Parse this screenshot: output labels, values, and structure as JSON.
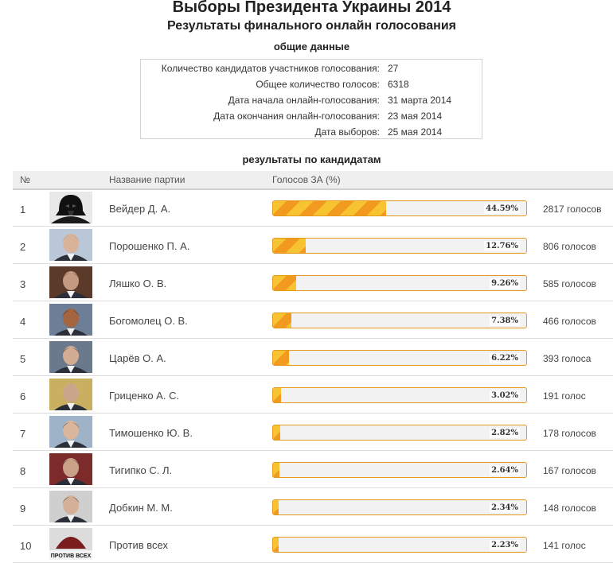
{
  "header": {
    "title": "Выборы Президента Украины 2014",
    "subtitle": "Результаты финального онлайн голосования"
  },
  "general": {
    "heading": "общие данные",
    "rows": [
      {
        "label": "Количество кандидатов участников голосования:",
        "value": "27"
      },
      {
        "label": "Общее количество голосов:",
        "value": "6318"
      },
      {
        "label": "Дата начала онлайн-голосования:",
        "value": "31 марта 2014"
      },
      {
        "label": "Дата окончания онлайн-голосования:",
        "value": "23 мая 2014"
      },
      {
        "label": "Дата выборов:",
        "value": "25 мая 2014"
      }
    ]
  },
  "results": {
    "heading": "результаты по кандидатам",
    "columns": {
      "num": "№",
      "party": "Название партии",
      "votes": "Голосов ЗА (%)"
    },
    "bar_colors": {
      "stripe_light": "#f7c331",
      "stripe_dark": "#f29a1f",
      "border": "#e39a1a",
      "track": "#f2f2f2"
    },
    "candidates": [
      {
        "num": "1",
        "name": "Вейдер Д. А.",
        "percent": 44.59,
        "percent_label": "44.59%",
        "votes": "2817 голосов",
        "photo": "darth-vader-photo"
      },
      {
        "num": "2",
        "name": "Порошенко П. А.",
        "percent": 12.76,
        "percent_label": "12.76%",
        "votes": "806 голосов",
        "photo": "candidate-photo"
      },
      {
        "num": "3",
        "name": "Ляшко О. В.",
        "percent": 9.26,
        "percent_label": "9.26%",
        "votes": "585 голосов",
        "photo": "candidate-photo"
      },
      {
        "num": "4",
        "name": "Богомолец О. В.",
        "percent": 7.38,
        "percent_label": "7.38%",
        "votes": "466 голосов",
        "photo": "candidate-photo"
      },
      {
        "num": "5",
        "name": "Царёв О. А.",
        "percent": 6.22,
        "percent_label": "6.22%",
        "votes": "393 голоса",
        "photo": "candidate-photo"
      },
      {
        "num": "6",
        "name": "Гриценко А. С.",
        "percent": 3.02,
        "percent_label": "3.02%",
        "votes": "191 голос",
        "photo": "candidate-photo"
      },
      {
        "num": "7",
        "name": "Тимошенко Ю. В.",
        "percent": 2.82,
        "percent_label": "2.82%",
        "votes": "178 голосов",
        "photo": "candidate-photo"
      },
      {
        "num": "8",
        "name": "Тигипко С. Л.",
        "percent": 2.64,
        "percent_label": "2.64%",
        "votes": "167 голосов",
        "photo": "candidate-photo"
      },
      {
        "num": "9",
        "name": "Добкин М. М.",
        "percent": 2.34,
        "percent_label": "2.34%",
        "votes": "148 голосов",
        "photo": "candidate-photo"
      },
      {
        "num": "10",
        "name": "Против всех",
        "percent": 2.23,
        "percent_label": "2.23%",
        "votes": "141 голос",
        "photo": "against-all-photo",
        "photo_text": "ПРОТИВ ВСЕХ"
      }
    ]
  }
}
